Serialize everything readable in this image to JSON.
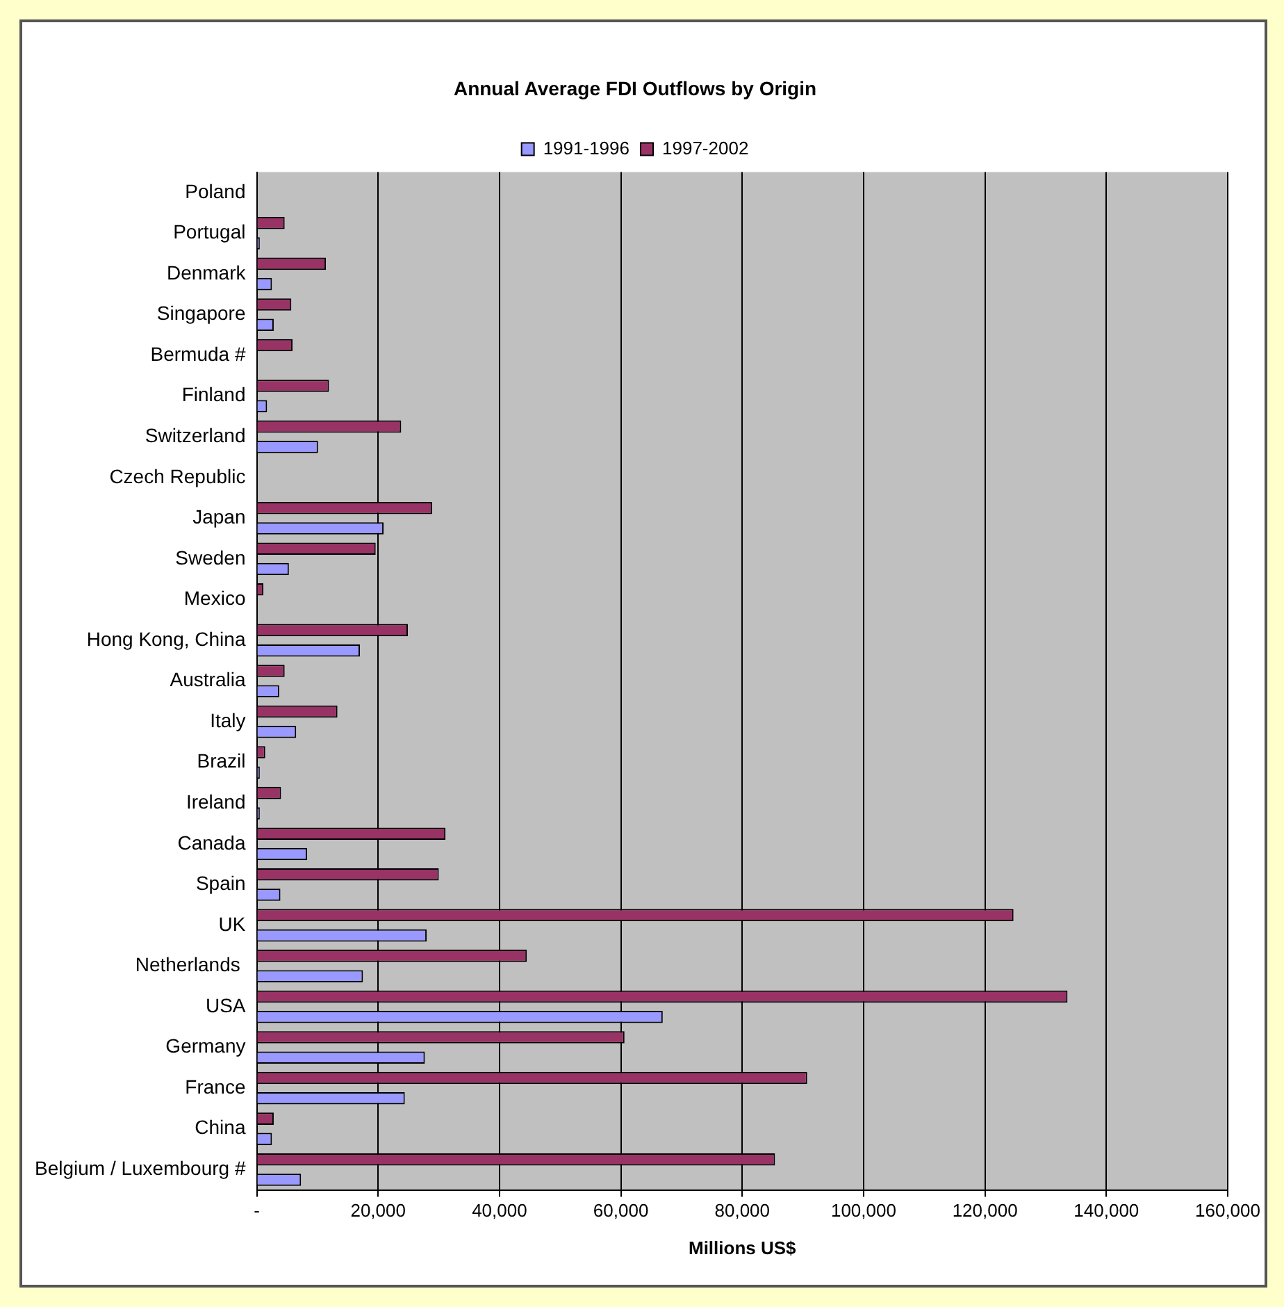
{
  "chart_data": {
    "type": "bar",
    "orientation": "horizontal",
    "title": "Annual Average FDI Outflows by Origin",
    "xlabel": "Millions US$",
    "categories": [
      "Poland",
      "Portugal",
      "Denmark",
      "Singapore",
      "Bermuda #",
      "Finland",
      "Switzerland",
      "Czech Republic",
      "Japan",
      "Sweden",
      "Mexico",
      "Hong Kong, China",
      "Australia",
      "Italy",
      "Brazil",
      "Ireland",
      "Canada",
      "Spain",
      "UK",
      "Netherlands ",
      "USA",
      "Germany",
      "France",
      "China",
      "Belgium / Luxembourg #"
    ],
    "series": [
      {
        "name": "1991-1996",
        "color": "#9999ff",
        "values": [
          null,
          500,
          2500,
          2800,
          null,
          1700,
          10100,
          null,
          20900,
          5300,
          null,
          17000,
          3700,
          6500,
          500,
          500,
          8300,
          3900,
          28000,
          17500,
          66900,
          27700,
          24400,
          2500,
          7300
        ]
      },
      {
        "name": "1997-2002",
        "color": "#993366",
        "values": [
          null,
          4600,
          11400,
          5700,
          5900,
          11900,
          23800,
          null,
          28900,
          19600,
          1100,
          24900,
          4600,
          13300,
          1400,
          4000,
          31100,
          30000,
          124700,
          44500,
          133600,
          60600,
          90700,
          2800,
          85400
        ]
      }
    ],
    "xlim": [
      0,
      160000
    ],
    "xticks": [
      {
        "value": 0,
        "label": "-"
      },
      {
        "value": 20000,
        "label": "20,000"
      },
      {
        "value": 40000,
        "label": "40,000"
      },
      {
        "value": 60000,
        "label": "60,000"
      },
      {
        "value": 80000,
        "label": "80,000"
      },
      {
        "value": 100000,
        "label": "100,000"
      },
      {
        "value": 120000,
        "label": "120,000"
      },
      {
        "value": 140000,
        "label": "140,000"
      },
      {
        "value": 160000,
        "label": "160,000"
      }
    ],
    "grid": "x",
    "legend": "top"
  }
}
